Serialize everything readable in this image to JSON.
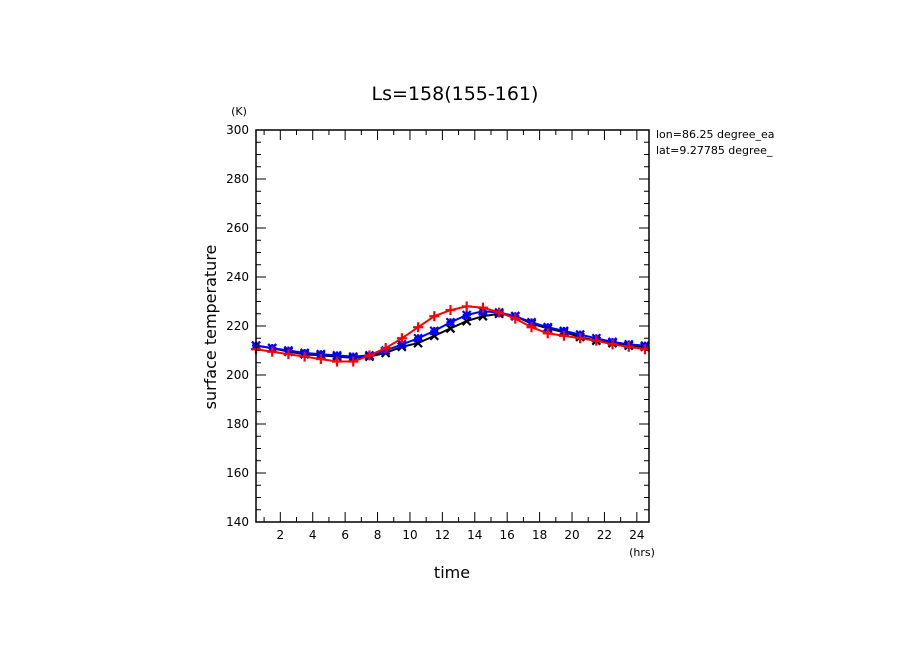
{
  "chart_data": {
    "type": "line",
    "title": "Ls=158(155-161)",
    "xlabel": "time",
    "ylabel": "surface temperature",
    "xunit": "(hrs)",
    "yunit": "(K)",
    "xlim": [
      0.5,
      24.75
    ],
    "ylim": [
      140,
      300
    ],
    "xticks": [
      2,
      4,
      6,
      8,
      10,
      12,
      14,
      16,
      18,
      20,
      22,
      24
    ],
    "yticks": [
      140,
      160,
      180,
      200,
      220,
      240,
      260,
      280,
      300
    ],
    "annotations": [
      "lon=86.25 degree_ea",
      "lat=9.27785 degree_"
    ],
    "x": [
      0.5,
      1.5,
      2.5,
      3.5,
      4.5,
      5.5,
      6.5,
      7.5,
      8.5,
      9.5,
      10.5,
      11.5,
      12.5,
      13.5,
      14.5,
      15.5,
      16.5,
      17.5,
      18.5,
      19.5,
      20.5,
      21.5,
      22.5,
      23.5,
      24.5
    ],
    "series": [
      {
        "color": "#000000",
        "marker": "x",
        "values": [
          212,
          211,
          209.5,
          208.5,
          208,
          207.5,
          207,
          207.5,
          209,
          211.5,
          213,
          216,
          219,
          222,
          224,
          225,
          224,
          221,
          219,
          217.5,
          215.5,
          214,
          213,
          212,
          211.5
        ]
      },
      {
        "color": "#0000ff",
        "marker": "star",
        "values": [
          212,
          211,
          210,
          209,
          208.5,
          208,
          207.5,
          208,
          210,
          212.5,
          215,
          218,
          221.5,
          224.5,
          226,
          225.5,
          224,
          221.5,
          219.5,
          218,
          216.5,
          215,
          213.5,
          212.5,
          212
        ]
      },
      {
        "color": "#ff0000",
        "marker": "plus",
        "values": [
          210.5,
          209.5,
          208.5,
          207.5,
          206.5,
          205.5,
          205.5,
          208,
          211,
          215,
          219.5,
          224,
          226.5,
          228,
          227.5,
          225.5,
          223,
          219.5,
          217,
          216,
          215,
          214,
          212.5,
          211.5,
          210.5
        ]
      }
    ]
  }
}
